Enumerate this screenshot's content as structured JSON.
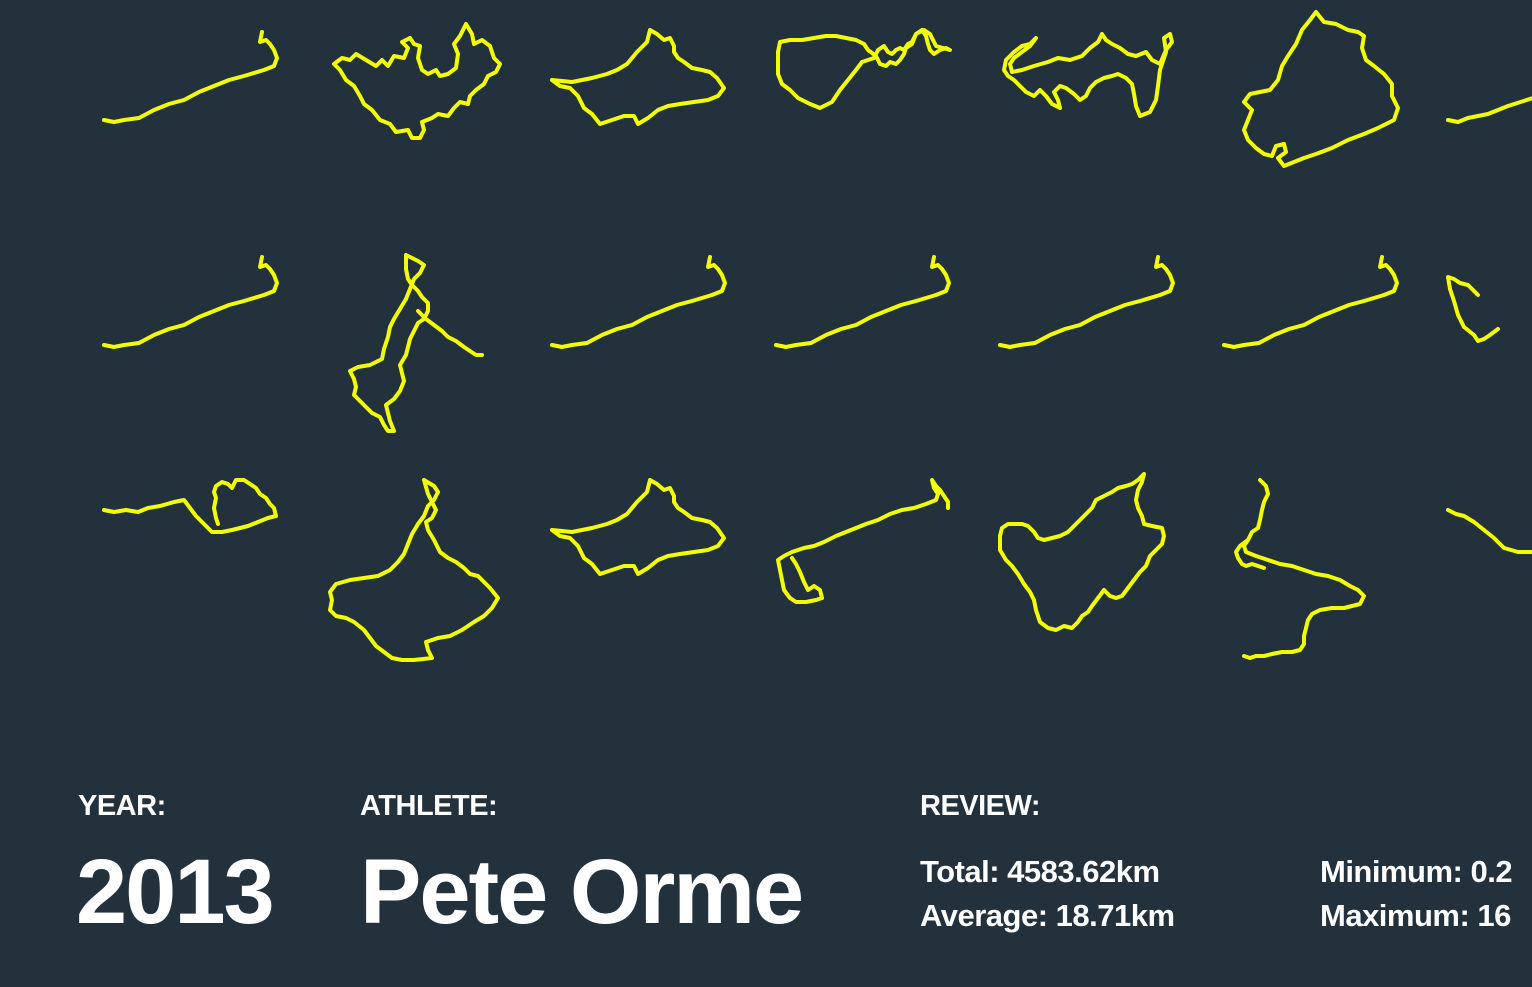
{
  "colors": {
    "background": "#22313c",
    "route": "#f2ff00",
    "text": "#ffffff"
  },
  "routes": {
    "rows": [
      [
        "commute",
        "loop-north",
        "loop-east",
        "loop-south",
        "loop-west",
        "loop-large",
        "commute-partial"
      ],
      [
        "commute",
        "spur-branch",
        "commute",
        "commute",
        "commute",
        "commute",
        "loop-north-partial"
      ],
      [
        "loop-small",
        "loop-spur",
        "loop-east",
        "commute-hook",
        "loop-hill",
        "out-back",
        "loop-partial"
      ]
    ]
  },
  "footer": {
    "year_label": "YEAR:",
    "year": "2013",
    "athlete_label": "ATHLETE:",
    "athlete": "Pete Orme",
    "review_label": "REVIEW:",
    "total": "Total: 4583.62km",
    "average": "Average: 18.71km",
    "minimum": "Minimum: 0.2",
    "maximum": "Maximum: 16"
  }
}
